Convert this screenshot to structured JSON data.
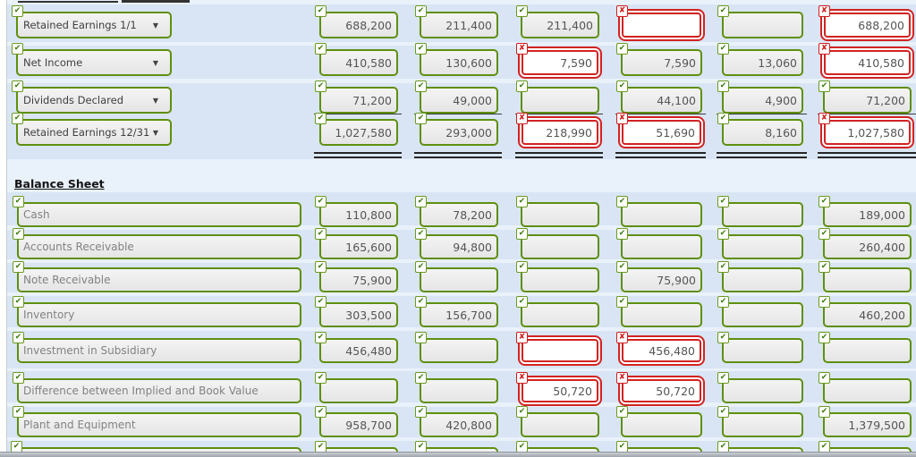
{
  "marks": {
    "correct": "✔",
    "wrong": "✘"
  },
  "colors": {
    "correct_green": "#5f8f0f",
    "wrong_red": "#d32222",
    "row_band_blue": "#d9e5f4",
    "page_blue": "#e9f1fb",
    "field_gray": "#ebebeb",
    "value_text": "#555555"
  },
  "retained_earnings_section": {
    "rows": [
      {
        "label": "Retained Earnings 1/1",
        "is_dropdown": true,
        "is_total": false,
        "cells": [
          {
            "value": "688,200",
            "correct": true
          },
          {
            "value": "211,400",
            "correct": true
          },
          {
            "value": "211,400",
            "correct": true
          },
          {
            "value": "",
            "correct": false
          },
          {
            "value": "",
            "correct": true
          },
          {
            "value": "688,200",
            "correct": false
          }
        ]
      },
      {
        "label": "Net Income",
        "is_dropdown": true,
        "is_total": false,
        "cells": [
          {
            "value": "410,580",
            "correct": true
          },
          {
            "value": "130,600",
            "correct": true
          },
          {
            "value": "7,590",
            "correct": false
          },
          {
            "value": "7,590",
            "correct": true
          },
          {
            "value": "13,060",
            "correct": true
          },
          {
            "value": "410,580",
            "correct": false
          }
        ]
      },
      {
        "label": "Dividends Declared",
        "is_dropdown": true,
        "is_total": false,
        "cells": [
          {
            "value": "71,200",
            "correct": true
          },
          {
            "value": "49,000",
            "correct": true
          },
          {
            "value": "",
            "correct": true
          },
          {
            "value": "44,100",
            "correct": true
          },
          {
            "value": "4,900",
            "correct": true
          },
          {
            "value": "71,200",
            "correct": true
          }
        ]
      },
      {
        "label": "Retained Earnings 12/31",
        "is_dropdown": true,
        "is_total": true,
        "cells": [
          {
            "value": "1,027,580",
            "correct": true
          },
          {
            "value": "293,000",
            "correct": true
          },
          {
            "value": "218,990",
            "correct": false
          },
          {
            "value": "51,690",
            "correct": false
          },
          {
            "value": "8,160",
            "correct": true
          },
          {
            "value": "1,027,580",
            "correct": false
          }
        ]
      }
    ]
  },
  "balance_sheet_section": {
    "heading": "Balance Sheet",
    "rows": [
      {
        "label": "Cash",
        "cells": [
          {
            "value": "110,800",
            "correct": true
          },
          {
            "value": "78,200",
            "correct": true
          },
          {
            "value": "",
            "correct": true
          },
          {
            "value": "",
            "correct": true
          },
          {
            "value": "",
            "correct": true
          },
          {
            "value": "189,000",
            "correct": true
          }
        ]
      },
      {
        "label": "Accounts Receivable",
        "cells": [
          {
            "value": "165,600",
            "correct": true
          },
          {
            "value": "94,800",
            "correct": true
          },
          {
            "value": "",
            "correct": true
          },
          {
            "value": "",
            "correct": true
          },
          {
            "value": "",
            "correct": true
          },
          {
            "value": "260,400",
            "correct": true
          }
        ]
      },
      {
        "label": "Note Receivable",
        "cells": [
          {
            "value": "75,900",
            "correct": true
          },
          {
            "value": "",
            "correct": true
          },
          {
            "value": "",
            "correct": true
          },
          {
            "value": "75,900",
            "correct": true
          },
          {
            "value": "",
            "correct": true
          },
          {
            "value": "",
            "correct": true
          }
        ]
      },
      {
        "label": "Inventory",
        "cells": [
          {
            "value": "303,500",
            "correct": true
          },
          {
            "value": "156,700",
            "correct": true
          },
          {
            "value": "",
            "correct": true
          },
          {
            "value": "",
            "correct": true
          },
          {
            "value": "",
            "correct": true
          },
          {
            "value": "460,200",
            "correct": true
          }
        ]
      },
      {
        "label": "Investment in Subsidiary",
        "cells": [
          {
            "value": "456,480",
            "correct": true
          },
          {
            "value": "",
            "correct": true
          },
          {
            "value": "",
            "correct": false
          },
          {
            "value": "456,480",
            "correct": false
          },
          {
            "value": "",
            "correct": true
          },
          {
            "value": "",
            "correct": true
          }
        ]
      },
      {
        "label": "Difference between Implied and Book Value",
        "cells": [
          {
            "value": "",
            "correct": true
          },
          {
            "value": "",
            "correct": true
          },
          {
            "value": "50,720",
            "correct": false
          },
          {
            "value": "50,720",
            "correct": false
          },
          {
            "value": "",
            "correct": true
          },
          {
            "value": "",
            "correct": true
          }
        ]
      },
      {
        "label": "Plant and Equipment",
        "cells": [
          {
            "value": "958,700",
            "correct": true
          },
          {
            "value": "420,800",
            "correct": true
          },
          {
            "value": "",
            "correct": true
          },
          {
            "value": "",
            "correct": true
          },
          {
            "value": "",
            "correct": true
          },
          {
            "value": "1,379,500",
            "correct": true
          }
        ]
      }
    ],
    "partial_next_row": {
      "visible": true,
      "marks_correct": true
    }
  }
}
